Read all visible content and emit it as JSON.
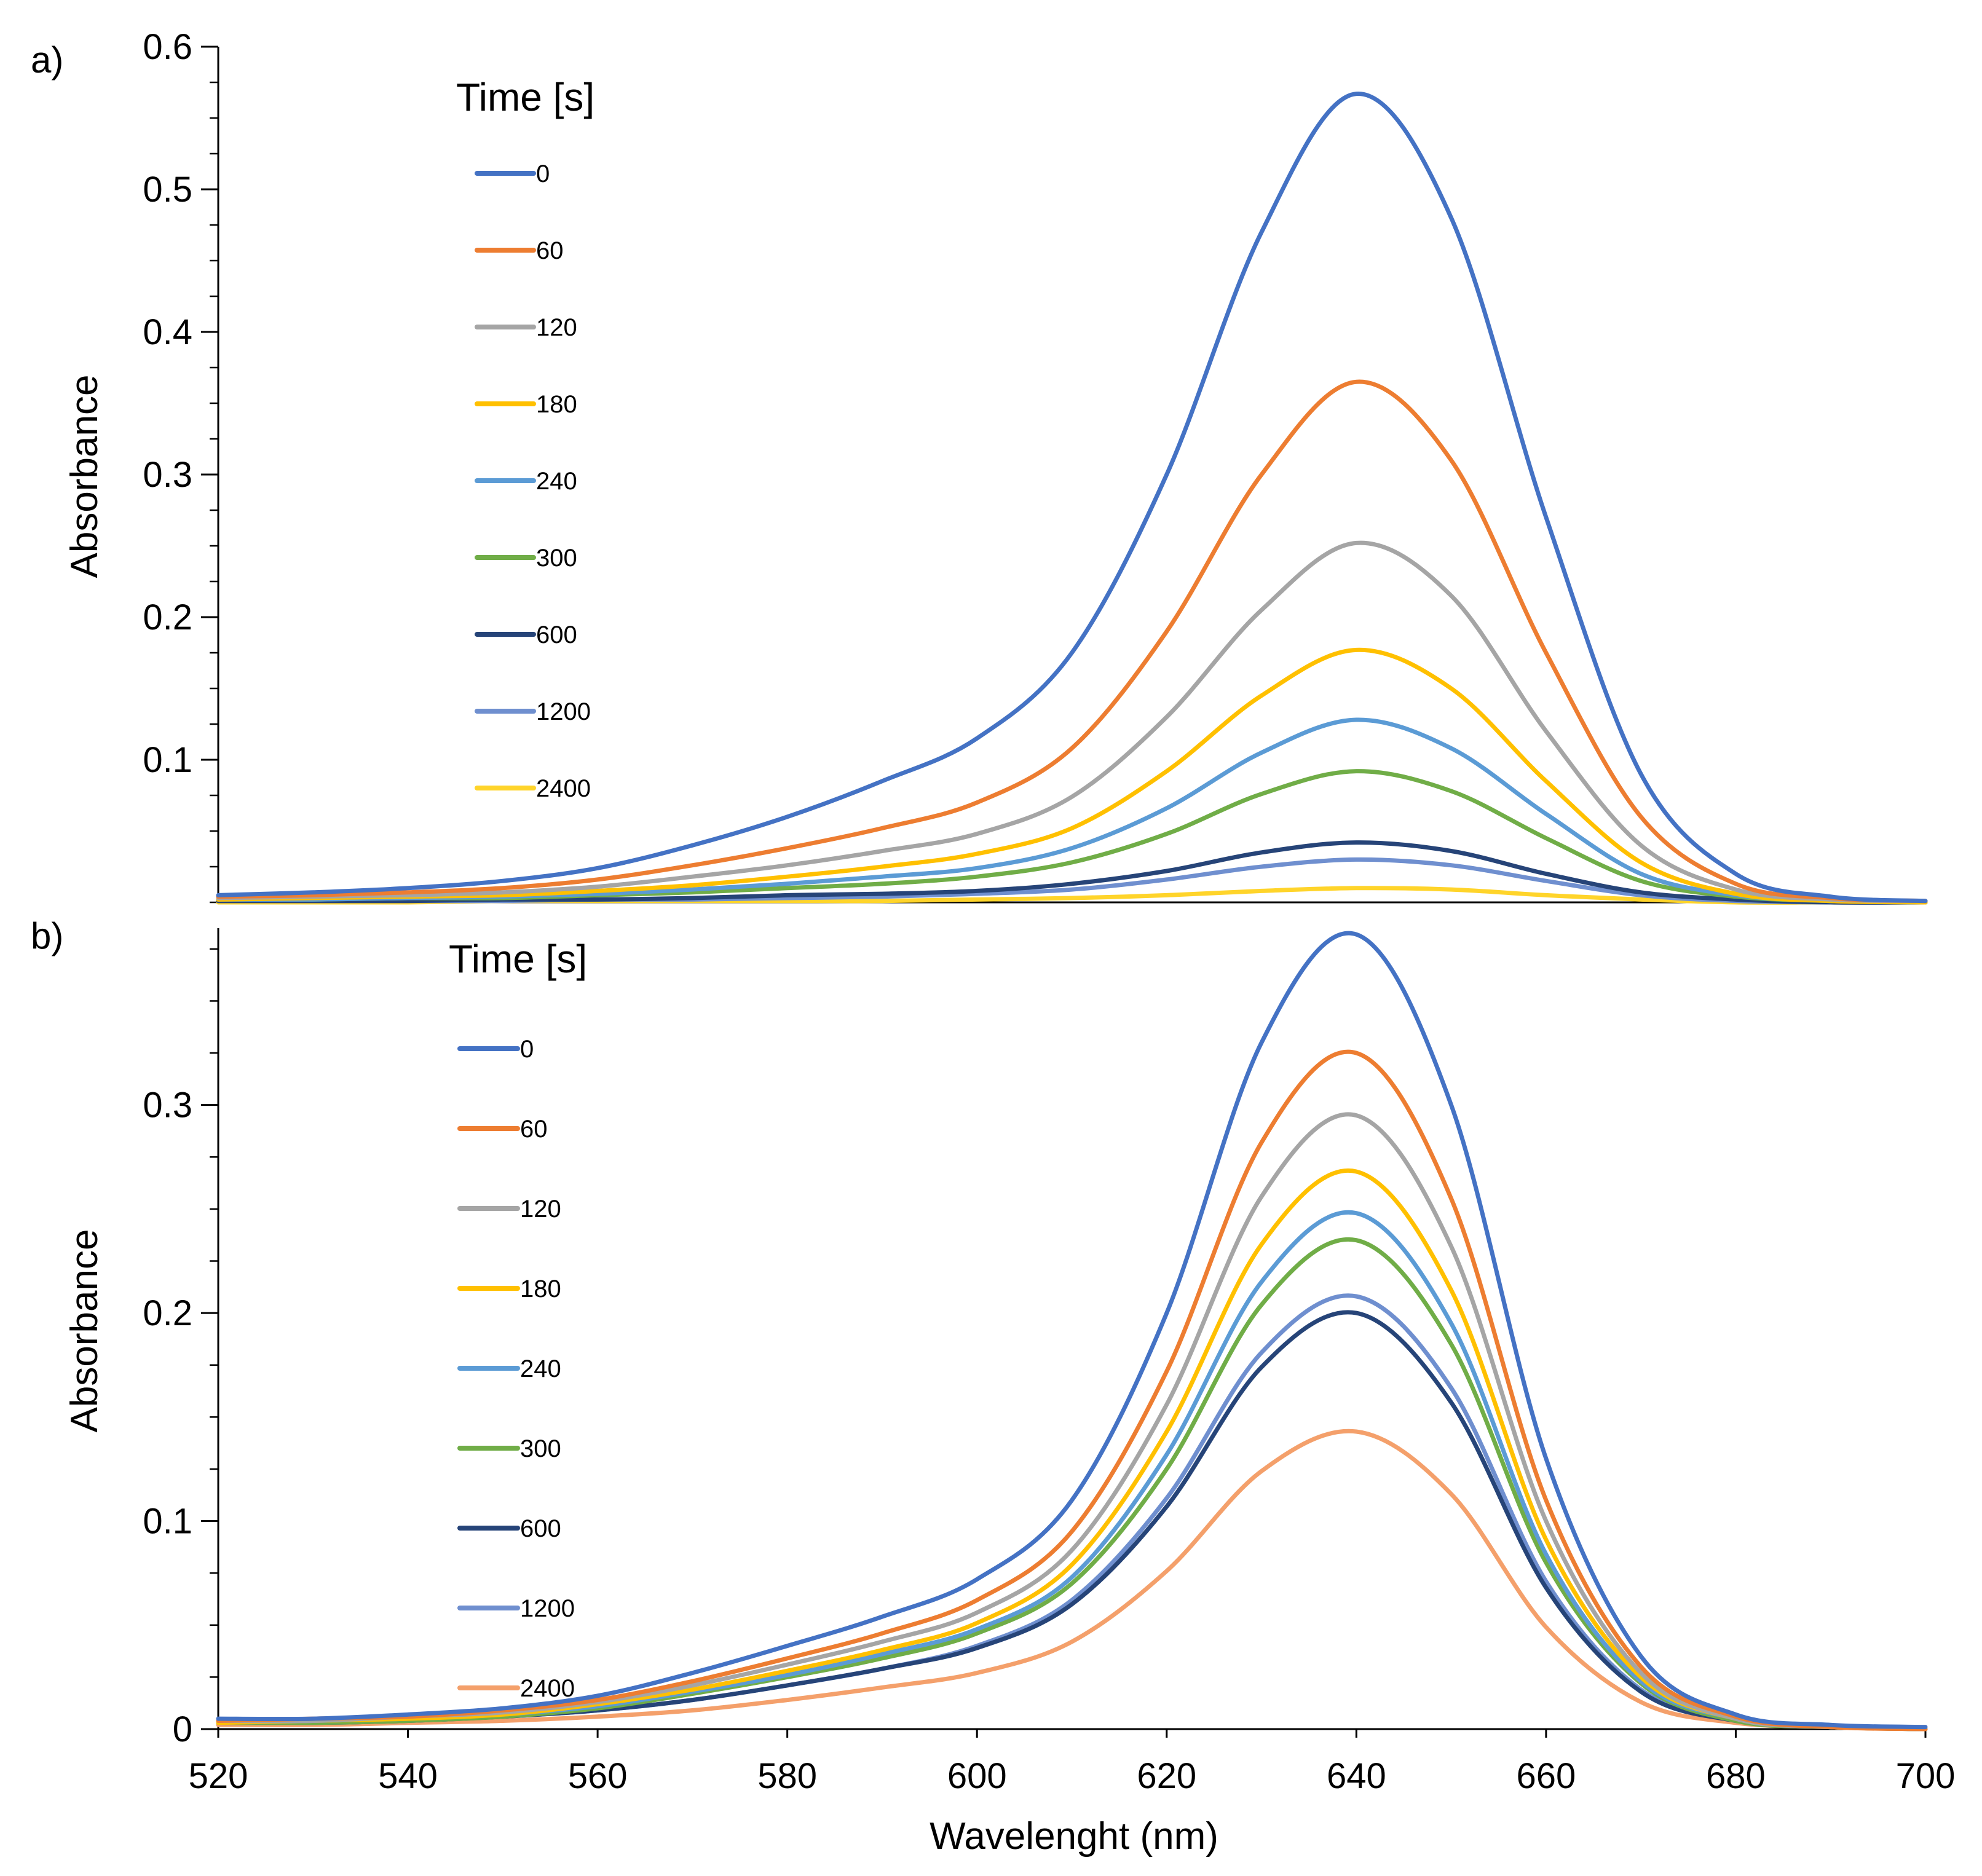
{
  "chart_data": [
    {
      "type": "line",
      "panel_label": "a)",
      "xlabel": "",
      "ylabel": "Absorbance",
      "xlim": [
        520,
        700
      ],
      "ylim": [
        0,
        0.6
      ],
      "x_ticks": [
        "520",
        "540",
        "560",
        "580",
        "600",
        "620",
        "640",
        "660",
        "680",
        "700"
      ],
      "y_ticks": [
        {
          "v": 0.1,
          "label": "0.1"
        },
        {
          "v": 0.2,
          "label": "0.2"
        },
        {
          "v": 0.3,
          "label": "0.3"
        },
        {
          "v": 0.4,
          "label": "0.4"
        },
        {
          "v": 0.5,
          "label": "0.5"
        },
        {
          "v": 0.6,
          "label": "0.6"
        }
      ],
      "legend_title": "Time [s]",
      "legend_position": "left",
      "x": [
        520,
        530,
        540,
        550,
        560,
        570,
        580,
        590,
        600,
        610,
        620,
        630,
        640,
        650,
        660,
        670,
        680,
        690,
        700
      ],
      "series": [
        {
          "name": "0",
          "color": "#4472C4",
          "values": [
            0.005,
            0.007,
            0.01,
            0.015,
            0.024,
            0.04,
            0.06,
            0.085,
            0.115,
            0.175,
            0.3,
            0.47,
            0.567,
            0.48,
            0.27,
            0.09,
            0.02,
            0.004,
            0.001
          ]
        },
        {
          "name": "60",
          "color": "#ED7D31",
          "values": [
            0.004,
            0.005,
            0.007,
            0.01,
            0.016,
            0.026,
            0.038,
            0.052,
            0.07,
            0.108,
            0.19,
            0.3,
            0.365,
            0.31,
            0.175,
            0.06,
            0.013,
            0.003,
            0.001
          ]
        },
        {
          "name": "120",
          "color": "#A5A5A5",
          "values": [
            0.003,
            0.004,
            0.005,
            0.007,
            0.011,
            0.018,
            0.026,
            0.036,
            0.048,
            0.074,
            0.13,
            0.205,
            0.252,
            0.215,
            0.12,
            0.04,
            0.009,
            0.002,
            0.001
          ]
        },
        {
          "name": "180",
          "color": "#FFC000",
          "values": [
            0.002,
            0.003,
            0.004,
            0.005,
            0.008,
            0.012,
            0.018,
            0.025,
            0.034,
            0.052,
            0.092,
            0.145,
            0.177,
            0.15,
            0.085,
            0.028,
            0.006,
            0.001,
            0.0
          ]
        },
        {
          "name": "240",
          "color": "#5B9BD5",
          "values": [
            0.002,
            0.002,
            0.003,
            0.004,
            0.006,
            0.009,
            0.013,
            0.018,
            0.024,
            0.038,
            0.066,
            0.105,
            0.128,
            0.108,
            0.062,
            0.02,
            0.005,
            0.001,
            0.0
          ]
        },
        {
          "name": "300",
          "color": "#70AD47",
          "values": [
            0.002,
            0.002,
            0.003,
            0.003,
            0.005,
            0.007,
            0.01,
            0.013,
            0.018,
            0.028,
            0.048,
            0.076,
            0.092,
            0.078,
            0.045,
            0.015,
            0.004,
            0.001,
            0.0
          ]
        },
        {
          "name": "600",
          "color": "#264478",
          "values": [
            0.001,
            0.001,
            0.001,
            0.002,
            0.002,
            0.003,
            0.005,
            0.006,
            0.008,
            0.013,
            0.022,
            0.035,
            0.042,
            0.036,
            0.02,
            0.007,
            0.002,
            0.0,
            0.0
          ]
        },
        {
          "name": "1200",
          "color": "#6F8FCF",
          "values": [
            0.001,
            0.001,
            0.001,
            0.001,
            0.002,
            0.002,
            0.003,
            0.004,
            0.006,
            0.009,
            0.016,
            0.025,
            0.03,
            0.026,
            0.015,
            0.005,
            0.001,
            0.0,
            0.0
          ]
        },
        {
          "name": "2400",
          "color": "#FFD42A",
          "values": [
            0.0,
            0.0,
            0.0,
            0.001,
            0.001,
            0.001,
            0.001,
            0.001,
            0.002,
            0.003,
            0.005,
            0.008,
            0.01,
            0.009,
            0.005,
            0.002,
            0.0,
            0.0,
            0.0
          ]
        }
      ]
    },
    {
      "type": "line",
      "panel_label": "b)",
      "xlabel": "Wavelenght (nm)",
      "ylabel": "Absorbance",
      "xlim": [
        520,
        700
      ],
      "ylim": [
        0,
        0.385
      ],
      "x_ticks": [
        "520",
        "540",
        "560",
        "580",
        "600",
        "620",
        "640",
        "660",
        "680",
        "700"
      ],
      "y_ticks": [
        {
          "v": 0,
          "label": "0"
        },
        {
          "v": 0.1,
          "label": "0.1"
        },
        {
          "v": 0.2,
          "label": "0.2"
        },
        {
          "v": 0.3,
          "label": "0.3"
        }
      ],
      "legend_title": "Time [s]",
      "legend_position": "left",
      "x": [
        520,
        530,
        540,
        550,
        560,
        570,
        580,
        590,
        600,
        610,
        620,
        630,
        640,
        650,
        660,
        670,
        680,
        690,
        700
      ],
      "series": [
        {
          "name": "0",
          "color": "#4472C4",
          "values": [
            0.005,
            0.005,
            0.007,
            0.01,
            0.016,
            0.027,
            0.04,
            0.054,
            0.072,
            0.11,
            0.2,
            0.33,
            0.382,
            0.3,
            0.13,
            0.035,
            0.007,
            0.002,
            0.001
          ]
        },
        {
          "name": "60",
          "color": "#ED7D31",
          "values": [
            0.004,
            0.005,
            0.006,
            0.009,
            0.014,
            0.023,
            0.034,
            0.046,
            0.062,
            0.095,
            0.172,
            0.282,
            0.325,
            0.255,
            0.11,
            0.03,
            0.006,
            0.001,
            0.0
          ]
        },
        {
          "name": "120",
          "color": "#A5A5A5",
          "values": [
            0.004,
            0.004,
            0.006,
            0.008,
            0.013,
            0.021,
            0.031,
            0.042,
            0.056,
            0.086,
            0.156,
            0.256,
            0.295,
            0.232,
            0.1,
            0.027,
            0.005,
            0.001,
            0.0
          ]
        },
        {
          "name": "180",
          "color": "#FFC000",
          "values": [
            0.003,
            0.004,
            0.005,
            0.007,
            0.012,
            0.019,
            0.028,
            0.038,
            0.051,
            0.079,
            0.143,
            0.233,
            0.268,
            0.211,
            0.091,
            0.025,
            0.005,
            0.001,
            0.0
          ]
        },
        {
          "name": "240",
          "color": "#5B9BD5",
          "values": [
            0.003,
            0.004,
            0.005,
            0.007,
            0.011,
            0.018,
            0.026,
            0.036,
            0.048,
            0.073,
            0.132,
            0.215,
            0.248,
            0.195,
            0.084,
            0.023,
            0.005,
            0.001,
            0.0
          ]
        },
        {
          "name": "300",
          "color": "#70AD47",
          "values": [
            0.003,
            0.003,
            0.004,
            0.006,
            0.01,
            0.017,
            0.025,
            0.034,
            0.046,
            0.07,
            0.125,
            0.204,
            0.235,
            0.185,
            0.08,
            0.022,
            0.004,
            0.001,
            0.0
          ]
        },
        {
          "name": "600",
          "color": "#264478",
          "values": [
            0.003,
            0.003,
            0.004,
            0.006,
            0.009,
            0.014,
            0.021,
            0.029,
            0.039,
            0.06,
            0.107,
            0.174,
            0.2,
            0.157,
            0.068,
            0.018,
            0.004,
            0.001,
            0.0
          ]
        },
        {
          "name": "1200",
          "color": "#6F8FCF",
          "values": [
            0.003,
            0.003,
            0.004,
            0.006,
            0.009,
            0.014,
            0.021,
            0.029,
            0.04,
            0.062,
            0.111,
            0.181,
            0.208,
            0.164,
            0.071,
            0.019,
            0.004,
            0.001,
            0.0
          ]
        },
        {
          "name": "2400",
          "color": "#F4A06B",
          "values": [
            0.002,
            0.002,
            0.003,
            0.004,
            0.006,
            0.009,
            0.014,
            0.02,
            0.027,
            0.042,
            0.076,
            0.124,
            0.143,
            0.113,
            0.049,
            0.013,
            0.003,
            0.001,
            0.0
          ]
        }
      ]
    }
  ]
}
